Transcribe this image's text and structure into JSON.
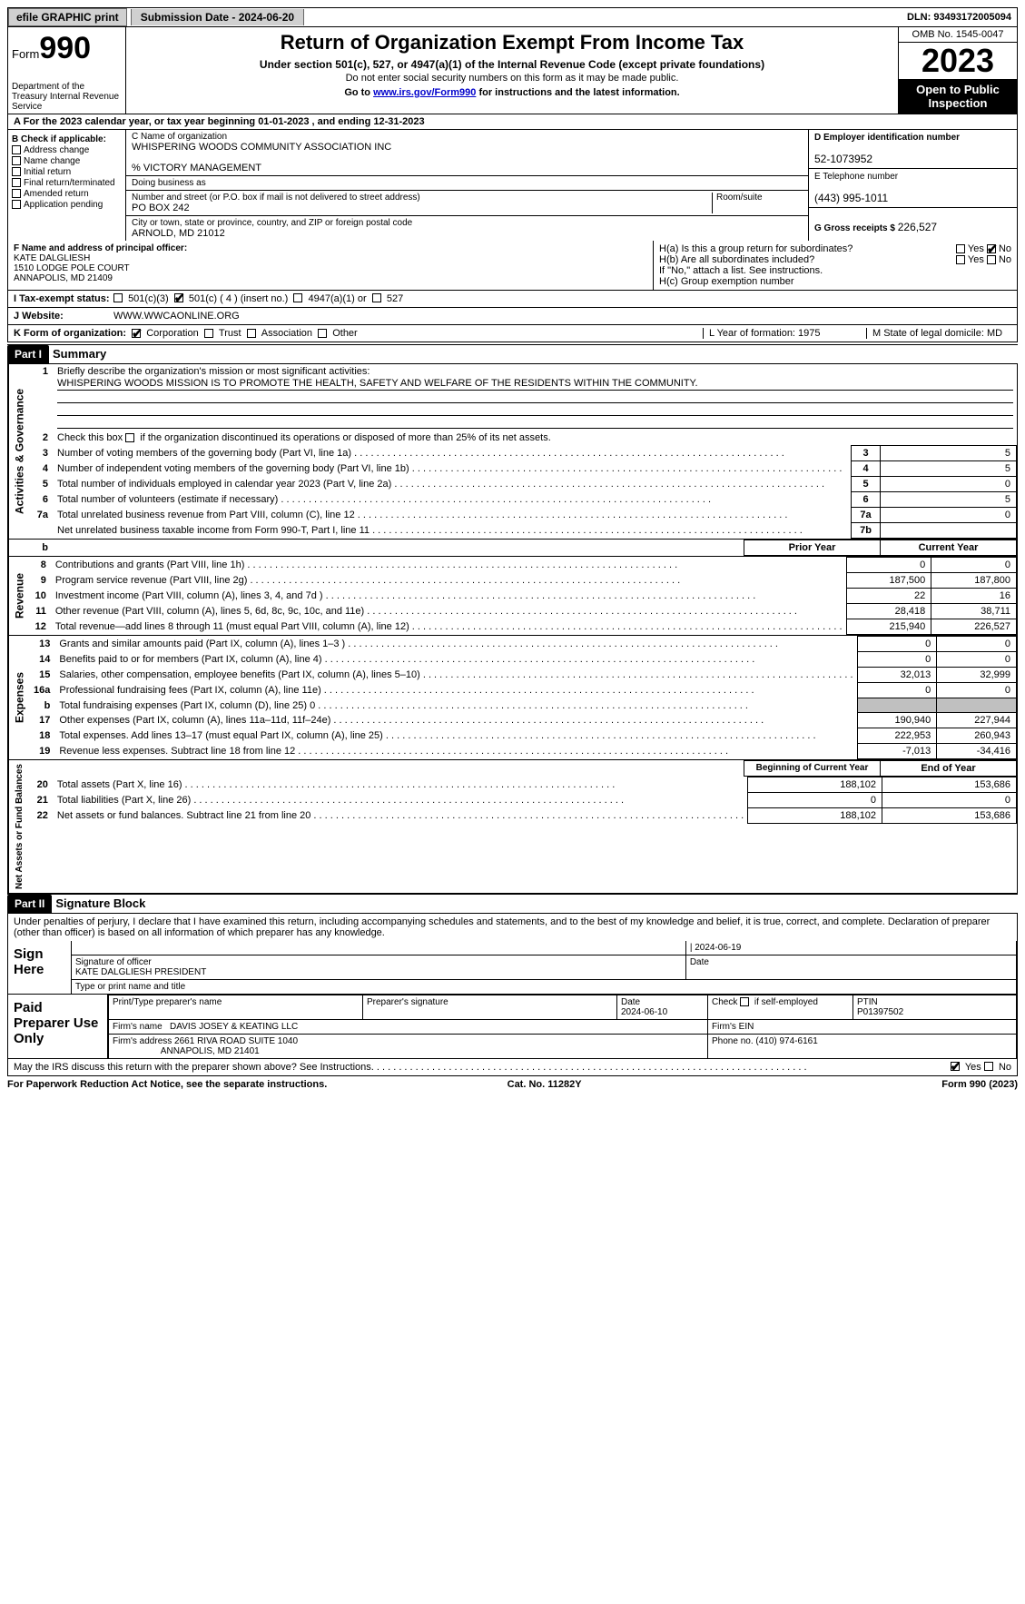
{
  "topbar": {
    "efile": "efile GRAPHIC print",
    "submission": "Submission Date - 2024-06-20",
    "dln": "DLN: 93493172005094"
  },
  "header": {
    "form_prefix": "Form",
    "form_num": "990",
    "dept": "Department of the Treasury Internal Revenue Service",
    "title": "Return of Organization Exempt From Income Tax",
    "sub1": "Under section 501(c), 527, or 4947(a)(1) of the Internal Revenue Code (except private foundations)",
    "sub2": "Do not enter social security numbers on this form as it may be made public.",
    "sub3_a": "Go to ",
    "sub3_link": "www.irs.gov/Form990",
    "sub3_b": " for instructions and the latest information.",
    "omb": "OMB No. 1545-0047",
    "year": "2023",
    "open": "Open to Public Inspection"
  },
  "rowA": "A For the 2023 calendar year, or tax year beginning 01-01-2023   , and ending 12-31-2023",
  "colB": {
    "title": "B Check if applicable:",
    "items": [
      "Address change",
      "Name change",
      "Initial return",
      "Final return/terminated",
      "Amended return",
      "Application pending"
    ]
  },
  "colC": {
    "name_lab": "C Name of organization",
    "name": "WHISPERING WOODS COMMUNITY ASSOCIATION INC",
    "care": "% VICTORY MANAGEMENT",
    "dba_lab": "Doing business as",
    "dba": "",
    "street_lab": "Number and street (or P.O. box if mail is not delivered to street address)",
    "room_lab": "Room/suite",
    "street": "PO BOX 242",
    "city_lab": "City or town, state or province, country, and ZIP or foreign postal code",
    "city": "ARNOLD, MD  21012"
  },
  "colD": {
    "ein_lab": "D Employer identification number",
    "ein": "52-1073952",
    "tel_lab": "E Telephone number",
    "tel": "(443) 995-1011",
    "gross_lab": "G Gross receipts $",
    "gross": "226,527"
  },
  "rowF": {
    "lab": "F  Name and address of principal officer:",
    "l1": "KATE DALGLIESH",
    "l2": "1510 LODGE POLE COURT",
    "l3": "ANNAPOLIS, MD  21409"
  },
  "rowH": {
    "ha": "H(a)  Is this a group return for subordinates?",
    "hb": "H(b)  Are all subordinates included?",
    "hb2": "If \"No,\" attach a list. See instructions.",
    "hc": "H(c)  Group exemption number",
    "yes": "Yes",
    "no": "No"
  },
  "rowI": {
    "lab": "I   Tax-exempt status:",
    "o1": "501(c)(3)",
    "o2": "501(c) ( 4 ) (insert no.)",
    "o3": "4947(a)(1) or",
    "o4": "527"
  },
  "rowJ": {
    "lab": "J   Website:",
    "val": "WWW.WWCAONLINE.ORG"
  },
  "rowK": {
    "lab": "K Form of organization:",
    "o1": "Corporation",
    "o2": "Trust",
    "o3": "Association",
    "o4": "Other",
    "L": "L Year of formation: 1975",
    "M": "M State of legal domicile: MD"
  },
  "part1": {
    "bar": "Part I",
    "title": "Summary"
  },
  "gov": {
    "label": "Activities & Governance",
    "l1a": "Briefly describe the organization's mission or most significant activities:",
    "l1b": "WHISPERING WOODS MISSION IS TO PROMOTE THE HEALTH, SAFETY AND WELFARE OF THE RESIDENTS WITHIN THE COMMUNITY.",
    "l2": "Check this box      if the organization discontinued its operations or disposed of more than 25% of its net assets.",
    "rows": [
      {
        "n": "3",
        "t": "Number of voting members of the governing body (Part VI, line 1a)",
        "b": "3",
        "v": "5"
      },
      {
        "n": "4",
        "t": "Number of independent voting members of the governing body (Part VI, line 1b)",
        "b": "4",
        "v": "5"
      },
      {
        "n": "5",
        "t": "Total number of individuals employed in calendar year 2023 (Part V, line 2a)",
        "b": "5",
        "v": "0"
      },
      {
        "n": "6",
        "t": "Total number of volunteers (estimate if necessary)",
        "b": "6",
        "v": "5"
      },
      {
        "n": "7a",
        "t": "Total unrelated business revenue from Part VIII, column (C), line 12",
        "b": "7a",
        "v": "0"
      },
      {
        "n": "",
        "t": "Net unrelated business taxable income from Form 990-T, Part I, line 11",
        "b": "7b",
        "v": ""
      }
    ]
  },
  "twocol_hdr_b": "b",
  "twocol_hdr_prior": "Prior Year",
  "twocol_hdr_curr": "Current Year",
  "revenue": {
    "label": "Revenue",
    "rows": [
      {
        "n": "8",
        "t": "Contributions and grants (Part VIII, line 1h)",
        "p": "0",
        "c": "0"
      },
      {
        "n": "9",
        "t": "Program service revenue (Part VIII, line 2g)",
        "p": "187,500",
        "c": "187,800"
      },
      {
        "n": "10",
        "t": "Investment income (Part VIII, column (A), lines 3, 4, and 7d )",
        "p": "22",
        "c": "16"
      },
      {
        "n": "11",
        "t": "Other revenue (Part VIII, column (A), lines 5, 6d, 8c, 9c, 10c, and 11e)",
        "p": "28,418",
        "c": "38,711"
      },
      {
        "n": "12",
        "t": "Total revenue—add lines 8 through 11 (must equal Part VIII, column (A), line 12)",
        "p": "215,940",
        "c": "226,527"
      }
    ]
  },
  "expenses": {
    "label": "Expenses",
    "rows": [
      {
        "n": "13",
        "t": "Grants and similar amounts paid (Part IX, column (A), lines 1–3 )",
        "p": "0",
        "c": "0"
      },
      {
        "n": "14",
        "t": "Benefits paid to or for members (Part IX, column (A), line 4)",
        "p": "0",
        "c": "0"
      },
      {
        "n": "15",
        "t": "Salaries, other compensation, employee benefits (Part IX, column (A), lines 5–10)",
        "p": "32,013",
        "c": "32,999"
      },
      {
        "n": "16a",
        "t": "Professional fundraising fees (Part IX, column (A), line 11e)",
        "p": "0",
        "c": "0"
      },
      {
        "n": "b",
        "t": "Total fundraising expenses (Part IX, column (D), line 25) 0",
        "p": "shade",
        "c": "shade"
      },
      {
        "n": "17",
        "t": "Other expenses (Part IX, column (A), lines 11a–11d, 11f–24e)",
        "p": "190,940",
        "c": "227,944"
      },
      {
        "n": "18",
        "t": "Total expenses. Add lines 13–17 (must equal Part IX, column (A), line 25)",
        "p": "222,953",
        "c": "260,943"
      },
      {
        "n": "19",
        "t": "Revenue less expenses. Subtract line 18 from line 12",
        "p": "-7,013",
        "c": "-34,416"
      }
    ]
  },
  "na_hdr_b": "Beginning of Current Year",
  "na_hdr_e": "End of Year",
  "netassets": {
    "label": "Net Assets or Fund Balances",
    "rows": [
      {
        "n": "20",
        "t": "Total assets (Part X, line 16)",
        "p": "188,102",
        "c": "153,686"
      },
      {
        "n": "21",
        "t": "Total liabilities (Part X, line 26)",
        "p": "0",
        "c": "0"
      },
      {
        "n": "22",
        "t": "Net assets or fund balances. Subtract line 21 from line 20",
        "p": "188,102",
        "c": "153,686"
      }
    ]
  },
  "part2": {
    "bar": "Part II",
    "title": "Signature Block"
  },
  "perjury": "Under penalties of perjury, I declare that I have examined this return, including accompanying schedules and statements, and to the best of my knowledge and belief, it is true, correct, and complete. Declaration of preparer (other than officer) is based on all information of which preparer has any knowledge.",
  "sign": {
    "here": "Sign Here",
    "date": "2024-06-19",
    "sig_lab": "Signature of officer",
    "name": "KATE DALGLIESH PRESIDENT",
    "name_lab": "Type or print name and title",
    "date_lab": "Date"
  },
  "paid": {
    "here": "Paid Preparer Use Only",
    "h1": "Print/Type preparer's name",
    "h2": "Preparer's signature",
    "h3": "Date",
    "h3v": "2024-06-10",
    "h4": "Check         if self-employed",
    "h5": "PTIN",
    "h5v": "P01397502",
    "fn_lab": "Firm's name",
    "fn": "DAVIS JOSEY & KEATING LLC",
    "fein": "Firm's EIN",
    "fa_lab": "Firm's address",
    "fa1": "2661 RIVA ROAD SUITE 1040",
    "fa2": "ANNAPOLIS, MD  21401",
    "ph": "Phone no. (410) 974-6161"
  },
  "may": "May the IRS discuss this return with the preparer shown above? See Instructions.",
  "footer": {
    "l": "For Paperwork Reduction Act Notice, see the separate instructions.",
    "m": "Cat. No. 11282Y",
    "r": "Form 990 (2023)"
  }
}
